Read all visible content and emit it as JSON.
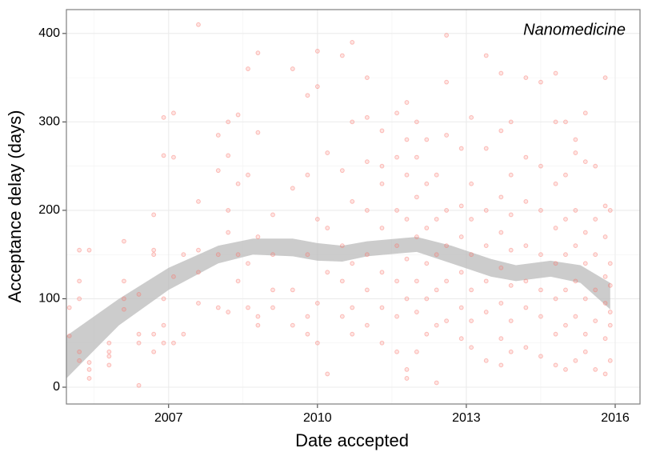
{
  "chart_data": {
    "type": "scatter",
    "annotation": "Nanomedicine",
    "x_label": "Date accepted",
    "y_label": "Acceptance delay (days)",
    "xlim": [
      2004.94,
      2016.5
    ],
    "ylim": [
      -19,
      427
    ],
    "xticks": [
      2007,
      2010,
      2013,
      2016
    ],
    "yticks": [
      0,
      100,
      200,
      300,
      400
    ],
    "x_minor": [
      2005.5,
      2008.5,
      2011.5,
      2014.5
    ],
    "y_minor": [
      50,
      150,
      250,
      350
    ],
    "grid": true,
    "color": "#f8766d",
    "band_color": "#bbbbbb",
    "x": [
      2005.0,
      2005.0,
      2005.2,
      2005.2,
      2005.2,
      2005.2,
      2005.2,
      2005.4,
      2005.4,
      2005.4,
      2005.4,
      2005.8,
      2005.8,
      2005.8,
      2005.8,
      2006.1,
      2006.1,
      2006.1,
      2006.1,
      2006.4,
      2006.4,
      2006.4,
      2006.4,
      2006.7,
      2006.7,
      2006.7,
      2006.7,
      2006.7,
      2006.9,
      2006.9,
      2006.9,
      2006.9,
      2006.9,
      2007.1,
      2007.1,
      2007.1,
      2007.1,
      2007.3,
      2007.3,
      2007.6,
      2007.6,
      2007.6,
      2007.6,
      2007.6,
      2008.0,
      2008.0,
      2008.0,
      2008.0,
      2008.2,
      2008.2,
      2008.2,
      2008.2,
      2008.2,
      2008.4,
      2008.4,
      2008.4,
      2008.4,
      2008.6,
      2008.6,
      2008.6,
      2008.6,
      2008.8,
      2008.8,
      2008.8,
      2008.8,
      2008.8,
      2009.1,
      2009.1,
      2009.1,
      2009.1,
      2009.5,
      2009.5,
      2009.5,
      2009.5,
      2009.8,
      2009.8,
      2009.8,
      2009.8,
      2009.8,
      2010.0,
      2010.0,
      2010.0,
      2010.0,
      2010.0,
      2010.2,
      2010.2,
      2010.2,
      2010.2,
      2010.5,
      2010.5,
      2010.5,
      2010.5,
      2010.5,
      2010.7,
      2010.7,
      2010.7,
      2010.7,
      2010.7,
      2010.7,
      2011.0,
      2011.0,
      2011.0,
      2011.0,
      2011.0,
      2011.0,
      2011.0,
      2011.3,
      2011.3,
      2011.3,
      2011.3,
      2011.3,
      2011.3,
      2011.3,
      2011.6,
      2011.6,
      2011.6,
      2011.6,
      2011.6,
      2011.6,
      2011.6,
      2011.8,
      2011.8,
      2011.8,
      2011.8,
      2011.8,
      2011.8,
      2011.8,
      2011.8,
      2012.0,
      2012.0,
      2012.0,
      2012.0,
      2012.0,
      2012.0,
      2012.0,
      2012.2,
      2012.2,
      2012.2,
      2012.2,
      2012.2,
      2012.2,
      2012.4,
      2012.4,
      2012.4,
      2012.4,
      2012.4,
      2012.4,
      2012.6,
      2012.6,
      2012.6,
      2012.6,
      2012.6,
      2012.6,
      2012.6,
      2012.9,
      2012.9,
      2012.9,
      2012.9,
      2012.9,
      2012.9,
      2013.1,
      2013.1,
      2013.1,
      2013.1,
      2013.1,
      2013.1,
      2013.1,
      2013.4,
      2013.4,
      2013.4,
      2013.4,
      2013.4,
      2013.4,
      2013.4,
      2013.7,
      2013.7,
      2013.7,
      2013.7,
      2013.7,
      2013.7,
      2013.7,
      2013.7,
      2013.9,
      2013.9,
      2013.9,
      2013.9,
      2013.9,
      2013.9,
      2013.9,
      2014.2,
      2014.2,
      2014.2,
      2014.2,
      2014.2,
      2014.2,
      2014.2,
      2014.5,
      2014.5,
      2014.5,
      2014.5,
      2014.5,
      2014.5,
      2014.5,
      2014.8,
      2014.8,
      2014.8,
      2014.8,
      2014.8,
      2014.8,
      2014.8,
      2014.8,
      2015.0,
      2015.0,
      2015.0,
      2015.0,
      2015.0,
      2015.0,
      2015.0,
      2015.2,
      2015.2,
      2015.2,
      2015.2,
      2015.2,
      2015.2,
      2015.2,
      2015.4,
      2015.4,
      2015.4,
      2015.4,
      2015.4,
      2015.4,
      2015.4,
      2015.6,
      2015.6,
      2015.6,
      2015.6,
      2015.6,
      2015.6,
      2015.8,
      2015.8,
      2015.8,
      2015.8,
      2015.8,
      2015.8,
      2015.8,
      2015.9,
      2015.9,
      2015.9,
      2015.9,
      2015.9,
      2015.9
    ],
    "y": [
      90,
      58,
      100,
      120,
      155,
      40,
      30,
      20,
      28,
      10,
      155,
      25,
      50,
      40,
      35,
      165,
      120,
      88,
      100,
      105,
      2,
      60,
      50,
      195,
      155,
      150,
      60,
      40,
      305,
      262,
      100,
      70,
      50,
      310,
      260,
      125,
      50,
      60,
      150,
      410,
      210,
      155,
      130,
      95,
      285,
      245,
      90,
      150,
      300,
      262,
      200,
      175,
      85,
      308,
      230,
      150,
      120,
      360,
      240,
      140,
      90,
      378,
      288,
      170,
      80,
      70,
      195,
      150,
      90,
      110,
      360,
      225,
      110,
      70,
      330,
      240,
      150,
      80,
      60,
      380,
      340,
      190,
      95,
      50,
      265,
      180,
      130,
      15,
      375,
      245,
      160,
      120,
      80,
      390,
      300,
      210,
      140,
      60,
      90,
      350,
      305,
      255,
      200,
      150,
      110,
      70,
      290,
      250,
      230,
      180,
      130,
      90,
      50,
      310,
      260,
      200,
      160,
      120,
      80,
      40,
      322,
      280,
      240,
      190,
      145,
      100,
      20,
      10,
      300,
      260,
      215,
      170,
      120,
      85,
      40,
      280,
      230,
      180,
      140,
      100,
      60,
      240,
      190,
      150,
      110,
      70,
      5,
      398,
      345,
      285,
      200,
      160,
      120,
      75,
      270,
      205,
      170,
      130,
      90,
      55,
      305,
      230,
      190,
      150,
      110,
      75,
      45,
      375,
      270,
      200,
      160,
      120,
      85,
      30,
      355,
      290,
      215,
      175,
      135,
      95,
      55,
      25,
      300,
      240,
      195,
      155,
      115,
      75,
      40,
      350,
      260,
      210,
      160,
      120,
      90,
      45,
      345,
      250,
      200,
      150,
      110,
      80,
      35,
      355,
      300,
      230,
      180,
      140,
      100,
      60,
      25,
      300,
      240,
      190,
      150,
      110,
      70,
      20,
      280,
      265,
      200,
      160,
      120,
      80,
      30,
      310,
      255,
      175,
      140,
      100,
      60,
      40,
      250,
      190,
      150,
      110,
      75,
      20,
      350,
      205,
      170,
      125,
      95,
      55,
      15,
      200,
      140,
      115,
      85,
      70,
      30
    ],
    "band": {
      "x": [
        2004.94,
        2006,
        2007,
        2008,
        2008.7,
        2009.5,
        2010,
        2010.5,
        2011,
        2012,
        2012.7,
        2013.5,
        2014,
        2014.7,
        2015.3,
        2015.9
      ],
      "lower": [
        10,
        70,
        110,
        140,
        150,
        148,
        143,
        142,
        148,
        153,
        140,
        125,
        120,
        125,
        118,
        88
      ],
      "upper": [
        58,
        100,
        135,
        160,
        168,
        168,
        163,
        160,
        165,
        170,
        160,
        145,
        138,
        143,
        138,
        118
      ]
    }
  }
}
